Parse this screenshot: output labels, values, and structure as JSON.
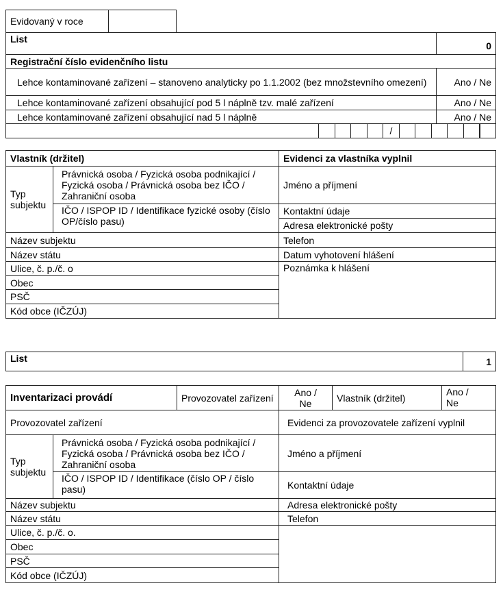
{
  "sheet0": {
    "year_label": "Evidovaný v roce",
    "year_value": "",
    "list_label": "List",
    "list_number": "0",
    "reg_label": "Registrační číslo evidenčního listu",
    "rows": [
      {
        "label": "Lehce kontaminované zařízení – stanoveno analyticky po 1.1.2002 (bez množstevního omezení)",
        "value": "Ano / Ne"
      },
      {
        "label": "Lehce kontaminované zařízení obsahující pod 5 l náplně tzv. malé zařízení",
        "value": "Ano / Ne"
      },
      {
        "label": "Lehce kontaminované zařízení obsahující nad 5 l náplně",
        "value": "Ano / Ne"
      }
    ],
    "reg_separator": "/"
  },
  "owner": {
    "header_left": "Vlastník (držitel)",
    "header_right": "Evidenci za vlastníka vyplnil",
    "typ_label": "Typ subjektu",
    "typ_option1": "Právnická osoba / Fyzická osoba podnikající / Fyzická osoba / Právnická osoba bez IČO / Zahraniční osoba",
    "typ_option2": "IČO / ISPOP ID / Identifikace fyzické osoby (číslo OP/číslo pasu)",
    "left_rows": [
      "Název subjektu",
      "Název státu",
      "Ulice, č. p./č. o",
      "Obec",
      "PSČ",
      "Kód obce (IČZÚJ)"
    ],
    "right_rows": [
      "Jméno a příjmení",
      "Kontaktní údaje",
      "Adresa elektronické pošty",
      "Telefon",
      "Datum vyhotovení hlášení",
      "Poznámka k hlášení"
    ]
  },
  "sheet1": {
    "list_label": "List",
    "list_number": "1",
    "inv_label": "Inventarizaci provádí",
    "inv_operator": "Provozovatel zařízení",
    "inv_operator_value": "Ano / Ne",
    "inv_owner": "Vlastník (držitel)",
    "inv_owner_value": "Ano / Ne",
    "operator_label": "Provozovatel zařízení",
    "operator_filled_by": "Evidenci za provozovatele zařízení vyplnil",
    "typ_label": "Typ subjektu",
    "typ_option1": "Právnická osoba / Fyzická osoba podnikající / Fyzická osoba / Právnická osoba bez IČO / Zahraniční osoba",
    "typ_option2": "IČO / ISPOP ID / Identifikace (číslo OP / číslo pasu)",
    "left_rows": [
      "Název subjektu",
      "Název státu",
      "Ulice, č. p./č. o.",
      "Obec",
      "PSČ",
      "Kód obce (IČZÚJ)"
    ],
    "right_rows": [
      "Jméno a příjmení",
      "Kontaktní údaje",
      "Adresa elektronické pošty",
      "Telefon"
    ]
  }
}
